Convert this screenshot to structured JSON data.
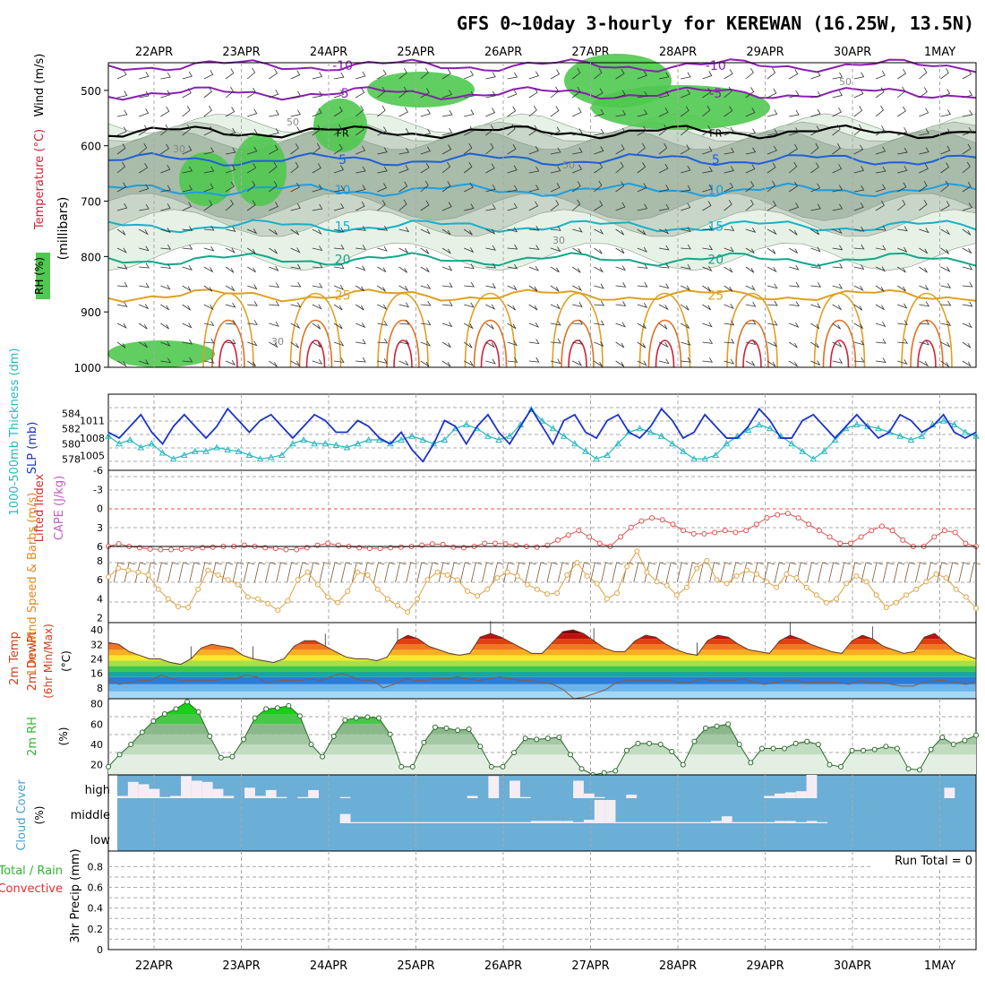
{
  "title": "GFS 0~10day 3-hourly for KEREWAN (16.25W, 13.5N)",
  "days": [
    "22APR",
    "23APR",
    "24APR",
    "25APR",
    "26APR",
    "27APR",
    "28APR",
    "29APR",
    "30APR",
    "1MAY"
  ],
  "colors": {
    "rh_green": "#4fc94f",
    "rh_gray": "#9aa89a",
    "temp_cold": "#7a1fa8",
    "temp_blue": "#1f5fd8",
    "temp_cyan": "#19b0c8",
    "temp_teal": "#12a88a",
    "temp_orange": "#e0a020",
    "temp_red": "#d0203a",
    "slp": "#1b34c8",
    "thick": "#27b8c0",
    "li": "#e05050",
    "wind": "#e0a040",
    "barb": "#7a5a3a",
    "cloud_bg": "#6baed6",
    "precip_conv": "#e03030",
    "rh2m": "#2db82d"
  },
  "chart_data": [
    {
      "type": "heatmap",
      "id": "cross-section",
      "ylabel": "(millibars)",
      "side_labels": [
        "Wind (m/s)",
        "Temperature (°C)",
        "RH (%)"
      ],
      "yticks": [
        500,
        600,
        700,
        800,
        900,
        1000
      ],
      "ylim": [
        450,
        1000
      ],
      "isotherms": [
        {
          "label": "-10",
          "level": 455,
          "color": "#8a1fb0"
        },
        {
          "label": "-5",
          "level": 505,
          "color": "#8a1fb0"
        },
        {
          "label": "FR",
          "level": 575,
          "color": "#000000"
        },
        {
          "label": "5",
          "level": 625,
          "color": "#1f5fd8"
        },
        {
          "label": "10",
          "level": 680,
          "color": "#1e9ee0"
        },
        {
          "label": "15",
          "level": 745,
          "color": "#19b0c8"
        },
        {
          "label": "20",
          "level": 805,
          "color": "#12a88a"
        },
        {
          "label": "25",
          "level": 870,
          "color": "#e0a020"
        }
      ],
      "rh_labels": [
        "30",
        "50",
        "50",
        "30",
        "50",
        "30"
      ]
    },
    {
      "type": "line",
      "id": "slp-thickness",
      "ylabel_left": "1000-500mb Thickness (dm)",
      "ylabel_right": "SLP (mb)",
      "left_ticks": [
        578,
        580,
        582,
        584
      ],
      "right_ticks": [
        1005,
        1008,
        1011
      ],
      "series": [
        {
          "name": "SLP",
          "values": [
            1009,
            1008,
            1010,
            1012,
            1009,
            1007,
            1010,
            1012,
            1010,
            1008,
            1010,
            1013,
            1011,
            1009,
            1011,
            1012,
            1010,
            1008,
            1010,
            1012,
            1011,
            1009,
            1009,
            1011,
            1010,
            1008,
            1007,
            1009,
            1006,
            1004,
            1007,
            1011,
            1010,
            1007,
            1010,
            1012,
            1009,
            1007,
            1010,
            1013,
            1010,
            1007,
            1011,
            1012,
            1009,
            1008,
            1011,
            1012,
            1009,
            1008,
            1010,
            1013,
            1011,
            1008,
            1009,
            1012,
            1010,
            1008,
            1008,
            1010,
            1013,
            1011,
            1008,
            1008,
            1011,
            1012,
            1010,
            1008,
            1010,
            1012,
            1010,
            1008,
            1009,
            1012,
            1011,
            1009,
            1010,
            1012,
            1009,
            1008,
            1009
          ]
        },
        {
          "name": "Thickness",
          "values": [
            581,
            580,
            580.5,
            579.5,
            580,
            578.8,
            578,
            578.5,
            579,
            579,
            579.5,
            579.2,
            579,
            578.5,
            578,
            578.2,
            578.5,
            580,
            580.5,
            580,
            580,
            579.8,
            579.5,
            580,
            580.5,
            580.5,
            580,
            580.5,
            581,
            580.5,
            580,
            580.5,
            582,
            582.5,
            582,
            581,
            580.5,
            581,
            582.5,
            584.5,
            583,
            582,
            581,
            580,
            579,
            578,
            578.5,
            580,
            581.5,
            582,
            581.5,
            581,
            580,
            579,
            578,
            578,
            578.5,
            580,
            581,
            581.8,
            582.5,
            582,
            581,
            580,
            579,
            578,
            579,
            580.5,
            582,
            582.5,
            582.3,
            582,
            581.5,
            581,
            580.5,
            581,
            582.5,
            583,
            582.5,
            581.5,
            581
          ]
        }
      ]
    },
    {
      "type": "line",
      "id": "lifted-index",
      "ylabel": "Lifted Index",
      "ylabel2": "CAPE (J/kg)",
      "yticks": [
        -6,
        -3,
        0,
        3,
        6
      ],
      "values": [
        6,
        5.6,
        6,
        6.2,
        6.4,
        6.5,
        6.5,
        6.4,
        6.3,
        6.2,
        6.1,
        6.0,
        6.0,
        5.8,
        6.0,
        6.2,
        6.3,
        6.5,
        6.5,
        6.2,
        5.8,
        5.5,
        5.8,
        6.0,
        6.2,
        6.3,
        6.3,
        6.2,
        6.1,
        6.0,
        5.8,
        5.6,
        5.7,
        6.1,
        6.2,
        6.0,
        5.5,
        5.5,
        5.6,
        5.8,
        6.0,
        6.1,
        5.8,
        5.0,
        4.2,
        3.5,
        4.5,
        5.5,
        6.0,
        4.5,
        3.0,
        2.0,
        1.5,
        1.8,
        2.5,
        3.5,
        4.0,
        4.0,
        3.8,
        3.5,
        3.8,
        3.5,
        2.5,
        1.5,
        1.0,
        0.8,
        1.5,
        2.5,
        3.5,
        4.5,
        5.5,
        5.5,
        4.5,
        3.5,
        2.8,
        3.5,
        5.0,
        6.0,
        6.0,
        4.5,
        3.5,
        3.8,
        5.5,
        6.0
      ]
    },
    {
      "type": "line",
      "id": "wind-10m",
      "ylabel": "10m Wind Speed & Barbs (m/s)",
      "yticks": [
        2,
        4,
        6,
        8
      ],
      "values": [
        6.3,
        7.2,
        7.0,
        6.8,
        6.5,
        5.0,
        4.0,
        3.2,
        3.1,
        5.0,
        7.0,
        6.5,
        6.0,
        5.5,
        4.2,
        4.0,
        3.5,
        2.8,
        3.8,
        6.0,
        6.8,
        5.5,
        4.2,
        3.6,
        4.8,
        6.8,
        6.5,
        5.0,
        4.0,
        3.3,
        2.6,
        4.0,
        6.0,
        6.8,
        6.5,
        6.0,
        4.8,
        4.3,
        5.0,
        6.2,
        6.8,
        6.4,
        5.5,
        5.0,
        4.5,
        4.6,
        6.5,
        7.8,
        6.4,
        5.6,
        4.0,
        4.6,
        7.4,
        9.0,
        6.8,
        5.8,
        5.4,
        4.4,
        5.2,
        7.2,
        8.0,
        6.0,
        5.6,
        6.4,
        7.0,
        6.6,
        5.8,
        5.2,
        6.6,
        6.2,
        5.2,
        4.4,
        3.6,
        4.0,
        5.6,
        6.4,
        5.8,
        4.4,
        3.1,
        3.6,
        4.4,
        5.0,
        5.8,
        6.6,
        6.2,
        5.0,
        4.2,
        3.0
      ]
    },
    {
      "type": "area",
      "id": "temp-2m",
      "ylabel": "2m Temp / 2m DewPt (6hr Min/Max) (°C)",
      "yticks": [
        8,
        16,
        24,
        32,
        40
      ],
      "series": [
        {
          "name": "Temp",
          "values": [
            33,
            32,
            28,
            26,
            24,
            24,
            22,
            21,
            24,
            30,
            32,
            31,
            30,
            26,
            24,
            23,
            22,
            24,
            31,
            34,
            34,
            31,
            28,
            25,
            24,
            24,
            23,
            25,
            34,
            37,
            35,
            31,
            29,
            27,
            26,
            27,
            36,
            38,
            36,
            33,
            30,
            27,
            27,
            33,
            39,
            40,
            38,
            34,
            30,
            28,
            28,
            34,
            37,
            36,
            32,
            29,
            27,
            26,
            34,
            37,
            36,
            32,
            29,
            28,
            27,
            34,
            37,
            35,
            32,
            30,
            28,
            27,
            34,
            37,
            35,
            31,
            29,
            27,
            28,
            36,
            38,
            33,
            28,
            26,
            24
          ]
        },
        {
          "name": "DewPt",
          "values": [
            13,
            10,
            11,
            12,
            12,
            15,
            13,
            12,
            12,
            12,
            12,
            13,
            13,
            15,
            14,
            11,
            12,
            12,
            12,
            13,
            12,
            14,
            16,
            14,
            12,
            12,
            8,
            10,
            13,
            12,
            12,
            13,
            13,
            14,
            13,
            12,
            13,
            14,
            13,
            12,
            12,
            11,
            10,
            7,
            2,
            3,
            5,
            7,
            11,
            12,
            12,
            12,
            12,
            12,
            11,
            11,
            13,
            12,
            12,
            12,
            13,
            11,
            10,
            11,
            12,
            12,
            11,
            11,
            11,
            11,
            10,
            12,
            11,
            11,
            10,
            9,
            9,
            11,
            12,
            12,
            11,
            10,
            11
          ]
        }
      ]
    },
    {
      "type": "area",
      "id": "rh-2m",
      "ylabel": "2m RH (%)",
      "yticks": [
        20,
        40,
        60,
        80
      ],
      "values": [
        18,
        30,
        40,
        52,
        63,
        70,
        75,
        82,
        72,
        48,
        27,
        28,
        45,
        66,
        75,
        76,
        78,
        68,
        40,
        28,
        48,
        64,
        66,
        67,
        66,
        50,
        18,
        18,
        42,
        57,
        56,
        54,
        55,
        38,
        18,
        18,
        32,
        46,
        45,
        46,
        47,
        30,
        16,
        10,
        12,
        14,
        34,
        41,
        41,
        40,
        33,
        20,
        43,
        56,
        58,
        60,
        40,
        22,
        36,
        36,
        36,
        41,
        43,
        40,
        20,
        18,
        34,
        34,
        35,
        38,
        36,
        16,
        15,
        35,
        47,
        40,
        44,
        49
      ]
    },
    {
      "type": "bar",
      "id": "cloud-cover",
      "ylabel": "Cloud Cover (%)",
      "levels": [
        "high",
        "middle",
        "low"
      ],
      "high": [
        10,
        70,
        60,
        40,
        5,
        10,
        95,
        75,
        70,
        40,
        10,
        0,
        45,
        10,
        35,
        5,
        0,
        5,
        35,
        0,
        0,
        5,
        0,
        0,
        0,
        0,
        0,
        0,
        0,
        0,
        0,
        0,
        0,
        10,
        0,
        95,
        0,
        75,
        5,
        0,
        0,
        0,
        0,
        75,
        20,
        5,
        0,
        0,
        15,
        0,
        0,
        0,
        0,
        0,
        0,
        0,
        0,
        0,
        0,
        0,
        0,
        10,
        20,
        25,
        30,
        100,
        0,
        0,
        0,
        0,
        0,
        0,
        0,
        0,
        0,
        0,
        0,
        0,
        45,
        0,
        0
      ],
      "middle": [
        0,
        0,
        0,
        0,
        0,
        0,
        0,
        0,
        0,
        0,
        0,
        0,
        0,
        0,
        0,
        0,
        0,
        0,
        0,
        0,
        0,
        40,
        5,
        5,
        5,
        5,
        5,
        5,
        5,
        5,
        5,
        5,
        5,
        5,
        5,
        5,
        5,
        5,
        5,
        10,
        10,
        10,
        10,
        5,
        15,
        100,
        100,
        5,
        5,
        5,
        5,
        5,
        5,
        5,
        5,
        5,
        10,
        30,
        5,
        5,
        5,
        5,
        10,
        10,
        5,
        10,
        5,
        0,
        0,
        0,
        0,
        0,
        0,
        0,
        0,
        0,
        0,
        0,
        0,
        0,
        0,
        0
      ],
      "low": []
    },
    {
      "type": "bar",
      "id": "precip",
      "ylabel": "3hr Precip (mm)",
      "legend": [
        "Total / Rain",
        "Convective"
      ],
      "yticks": [
        0,
        0.2,
        0.4,
        0.6,
        0.8
      ],
      "annotation": "Run Total = 0",
      "values": []
    }
  ]
}
